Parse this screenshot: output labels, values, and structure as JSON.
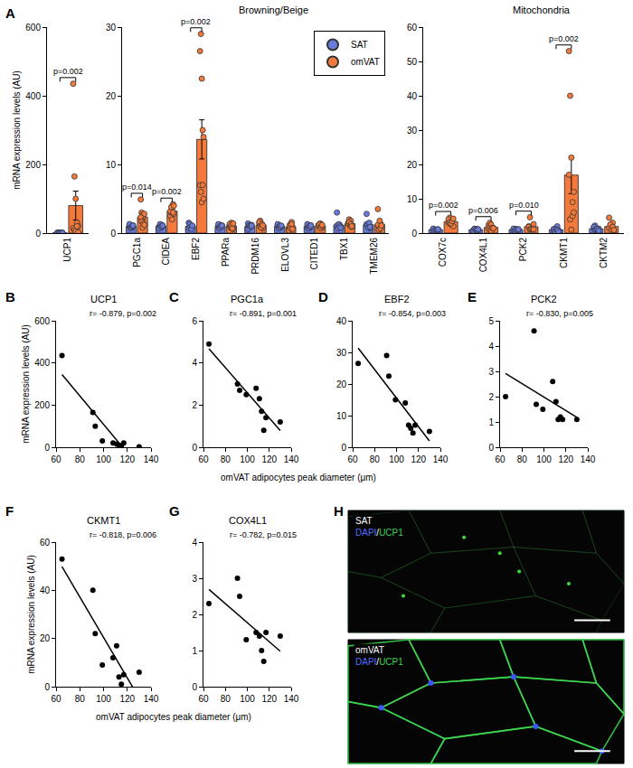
{
  "chart_data": [
    {
      "type": "bar",
      "panel": "A",
      "y_label": "mRNA expression levels (AU)",
      "categories": [
        "UCP1"
      ],
      "series": [
        {
          "name": "SAT",
          "color": "#6a7bdc",
          "values": [
            1.0
          ],
          "errors": [
            0.09
          ],
          "points": [
            [
              1.5,
              0.8,
              1.2,
              0.6,
              1.0,
              0.9,
              1.3,
              0.7,
              1.1,
              0.9
            ]
          ]
        },
        {
          "name": "omVAT",
          "color": "#f47a3c",
          "values": [
            80.2
          ],
          "errors": [
            42
          ],
          "points": [
            [
              435,
              165,
              100,
              30,
              20,
              15,
              10,
              5,
              20,
              2
            ]
          ]
        }
      ],
      "ylim": [
        0,
        600
      ],
      "yticks": [
        0,
        200,
        400,
        600
      ],
      "comparisons": [
        {
          "category": "UCP1",
          "text": "p=0.002"
        }
      ],
      "grid": false
    },
    {
      "type": "bar",
      "subtitle": "Browning/Beige",
      "categories": [
        "PGC1a",
        "CIDEA",
        "EBF2",
        "PPARa",
        "PRDM16",
        "ELOVL3",
        "CITED1",
        "TBX1",
        "TMEM26"
      ],
      "series": [
        {
          "name": "SAT",
          "color": "#6a7bdc",
          "values": [
            1.0,
            1.0,
            1.0,
            1.0,
            1.0,
            1.0,
            1.0,
            1.18,
            1.22
          ],
          "errors": [
            0.06,
            0.06,
            0.07,
            0.06,
            0.07,
            0.06,
            0.06,
            0.21,
            0.19
          ],
          "points": [
            [
              1.2,
              0.9,
              1.0,
              0.8,
              1.1,
              1.3,
              0.7,
              0.9,
              1.0,
              1.1
            ],
            [
              0.9,
              1.1,
              0.8,
              1.2,
              1.0,
              0.7,
              1.3,
              1.0,
              0.9,
              1.1
            ],
            [
              1.5,
              0.8,
              1.2,
              0.9,
              1.0,
              0.7,
              1.3,
              0.9,
              0.6,
              1.1
            ],
            [
              1.0,
              0.8,
              1.2,
              0.9,
              1.1,
              1.3,
              0.7,
              1.0,
              0.9,
              1.1
            ],
            [
              1.4,
              0.8,
              1.0,
              0.9,
              1.2,
              0.6,
              1.1,
              1.0,
              0.9,
              1.1
            ],
            [
              1.2,
              0.9,
              1.1,
              0.8,
              1.0,
              1.3,
              0.7,
              1.0,
              0.9,
              1.1
            ],
            [
              0.9,
              1.2,
              1.0,
              0.8,
              1.1,
              1.3,
              0.7,
              1.0,
              0.9,
              1.1
            ],
            [
              3.0,
              1.0,
              0.8,
              1.2,
              0.9,
              1.1,
              0.7,
              1.3,
              1.0,
              0.8
            ],
            [
              2.8,
              1.2,
              0.9,
              1.0,
              0.7,
              1.3,
              1.1,
              0.8,
              1.5,
              0.9
            ]
          ]
        },
        {
          "name": "omVAT",
          "color": "#f47a3c",
          "values": [
            2.33,
            3.2,
            13.65,
            1.05,
            1.19,
            0.91,
            1.06,
            1.38,
            1.27
          ],
          "errors": [
            0.38,
            0.22,
            2.85,
            0.09,
            0.11,
            0.12,
            0.07,
            0.11,
            0.28
          ],
          "points": [
            [
              4.9,
              3.0,
              2.7,
              2.5,
              2.8,
              2.3,
              1.7,
              0.8,
              1.4,
              1.2
            ],
            [
              2.5,
              3.0,
              3.5,
              4.2,
              2.8,
              3.2,
              3.8,
              2.0,
              3.0,
              4.0
            ],
            [
              26.5,
              29,
              22.5,
              15,
              14,
              7,
              6,
              4.5,
              7,
              5
            ],
            [
              1.2,
              0.8,
              1.5,
              1.0,
              0.6,
              1.3,
              0.9,
              1.1,
              0.7,
              1.4
            ],
            [
              1.5,
              1.8,
              0.9,
              1.2,
              0.7,
              1.6,
              1.0,
              0.8,
              1.3,
              1.1
            ],
            [
              0.5,
              1.2,
              0.8,
              1.6,
              0.9,
              0.4,
              1.1,
              0.7,
              1.3,
              0.6
            ],
            [
              1.2,
              0.9,
              1.4,
              1.0,
              0.8,
              1.1,
              1.3,
              0.7,
              1.0,
              1.2
            ],
            [
              1.5,
              2.0,
              1.2,
              1.8,
              0.9,
              1.4,
              1.6,
              1.1,
              1.3,
              1.0
            ],
            [
              3.5,
              1.0,
              0.6,
              1.4,
              0.9,
              1.2,
              0.5,
              1.8,
              0.7,
              1.1
            ]
          ]
        }
      ],
      "ylim": [
        0,
        30
      ],
      "yticks": [
        0,
        10,
        20,
        30
      ],
      "comparisons": [
        {
          "category": "PGC1a",
          "text": "p=0.014"
        },
        {
          "category": "CIDEA",
          "text": "p=0.002"
        },
        {
          "category": "EBF2",
          "text": "p=0.002"
        }
      ],
      "legend": "top right",
      "grid": false
    },
    {
      "type": "bar",
      "subtitle": "Mitochondria",
      "categories": [
        "COX7c",
        "COX4L1",
        "PCK2",
        "CKMT1",
        "CKTM2"
      ],
      "series": [
        {
          "name": "SAT",
          "color": "#6a7bdc",
          "values": [
            1.0,
            1.0,
            1.0,
            1.0,
            1.25
          ],
          "errors": [
            0.06,
            0.06,
            0.06,
            0.15,
            0.15
          ],
          "points": [
            [
              1.2,
              0.9,
              1.0,
              0.8,
              1.1,
              1.3,
              0.7,
              0.9,
              1.0,
              1.1
            ],
            [
              0.9,
              1.1,
              0.8,
              1.2,
              1.0,
              0.7,
              1.3,
              1.0,
              0.9,
              1.1
            ],
            [
              1.0,
              0.8,
              1.2,
              0.9,
              1.1,
              1.3,
              0.7,
              1.0,
              0.9,
              1.1
            ],
            [
              1.0,
              0.5,
              1.5,
              2.0,
              0.8,
              1.2,
              0.6,
              1.1,
              0.9,
              0.4
            ],
            [
              1.5,
              2.2,
              1.0,
              0.8,
              1.3,
              1.8,
              0.9,
              1.1,
              1.2,
              0.7
            ]
          ]
        },
        {
          "name": "omVAT",
          "color": "#f47a3c",
          "values": [
            3.35,
            1.66,
            1.87,
            16.9,
            1.92
          ],
          "errors": [
            0.25,
            0.22,
            0.33,
            5.4,
            0.37
          ],
          "points": [
            [
              3.0,
              4.5,
              2.5,
              3.8,
              2.0,
              4.0,
              3.2,
              2.8,
              3.5,
              4.2
            ],
            [
              2.3,
              3.0,
              2.5,
              1.3,
              1.5,
              1.4,
              1.0,
              0.7,
              1.5,
              1.4
            ],
            [
              2.0,
              4.6,
              1.7,
              1.5,
              2.6,
              1.8,
              1.1,
              1.2,
              1.1,
              1.1
            ],
            [
              53,
              40,
              22,
              9,
              12,
              17,
              4,
              1,
              5,
              6
            ],
            [
              4.5,
              2.0,
              1.2,
              3.0,
              0.8,
              1.5,
              2.5,
              1.0,
              1.8,
              0.9
            ]
          ]
        }
      ],
      "ylim": [
        0,
        60
      ],
      "yticks": [
        0,
        10,
        20,
        30,
        40,
        50,
        60
      ],
      "comparisons": [
        {
          "category": "COX7c",
          "text": "p=0.002"
        },
        {
          "category": "COX4L1",
          "text": "p=0.006"
        },
        {
          "category": "PCK2",
          "text": "p=0.010"
        },
        {
          "category": "CKMT1",
          "text": "p=0.002"
        }
      ],
      "grid": false
    },
    {
      "type": "scatter",
      "panel": "B",
      "title": "UCP1",
      "y_label": "mRNA expression levels (AU)",
      "annotation": "r= -0.879, p=0.002",
      "x": [
        65,
        91,
        93,
        99,
        108,
        111,
        113,
        115,
        117,
        130
      ],
      "values": [
        435,
        165,
        100,
        30,
        20,
        15,
        10,
        5,
        20,
        2
      ],
      "xlim": [
        60,
        140
      ],
      "xticks": [
        60,
        80,
        100,
        120,
        140
      ],
      "ylim": [
        0,
        600
      ],
      "yticks": [
        0,
        200,
        400,
        600
      ],
      "color": "#000000",
      "marker": "circle",
      "line_style": "solid",
      "grid": false
    },
    {
      "type": "scatter",
      "panel": "C",
      "title": "PGC1a",
      "x_label": "omVAT adipocytes peak diameter (μm)",
      "annotation": "r= -0.891, p=0.001",
      "x": [
        65,
        91,
        93,
        99,
        108,
        111,
        113,
        115,
        117,
        130
      ],
      "values": [
        4.9,
        3.0,
        2.7,
        2.5,
        2.8,
        2.3,
        1.7,
        0.8,
        1.4,
        1.2
      ],
      "xlim": [
        60,
        140
      ],
      "xticks": [
        60,
        80,
        100,
        120,
        140
      ],
      "ylim": [
        0,
        6
      ],
      "yticks": [
        0,
        2,
        4,
        6
      ],
      "color": "#000000",
      "marker": "circle",
      "line_style": "solid",
      "grid": false
    },
    {
      "type": "scatter",
      "panel": "D",
      "title": "EBF2",
      "annotation": "r= -0.854, p=0.003",
      "x": [
        65,
        91,
        93,
        99,
        108,
        111,
        113,
        115,
        117,
        130
      ],
      "values": [
        26.5,
        29,
        22.5,
        15,
        14,
        7,
        6,
        4.5,
        7,
        5
      ],
      "xlim": [
        60,
        140
      ],
      "xticks": [
        60,
        80,
        100,
        120,
        140
      ],
      "ylim": [
        0,
        40
      ],
      "yticks": [
        0,
        10,
        20,
        30,
        40
      ],
      "color": "#000000",
      "marker": "circle",
      "line_style": "solid",
      "grid": false
    },
    {
      "type": "scatter",
      "panel": "E",
      "title": "PCK2",
      "annotation": "r= -0.830, p=0.005",
      "x": [
        65,
        91,
        93,
        99,
        108,
        111,
        113,
        115,
        117,
        130
      ],
      "values": [
        2.0,
        4.6,
        1.7,
        1.5,
        2.6,
        1.8,
        1.1,
        1.2,
        1.1,
        1.1
      ],
      "xlim": [
        60,
        140
      ],
      "xticks": [
        60,
        80,
        100,
        120,
        140
      ],
      "ylim": [
        0,
        5
      ],
      "yticks": [
        0,
        1,
        2,
        3,
        4,
        5
      ],
      "color": "#000000",
      "marker": "circle",
      "line_style": "solid",
      "grid": false
    },
    {
      "type": "scatter",
      "panel": "F",
      "title": "CKMT1",
      "y_label": "mRNA expression levels (AU)",
      "x_label": "omVAT adipocytes peak diameter (μm)",
      "annotation": "r= -0.818, p=0.006",
      "x": [
        65,
        91,
        93,
        99,
        108,
        111,
        113,
        115,
        117,
        130
      ],
      "values": [
        53,
        40,
        22,
        9,
        12,
        17,
        4,
        1,
        5,
        6
      ],
      "xlim": [
        60,
        140
      ],
      "xticks": [
        60,
        80,
        100,
        120,
        140
      ],
      "ylim": [
        0,
        60
      ],
      "yticks": [
        0,
        20,
        40,
        60
      ],
      "color": "#000000",
      "marker": "circle",
      "line_style": "solid",
      "grid": false
    },
    {
      "type": "scatter",
      "panel": "G",
      "title": "COX4L1",
      "annotation": "r= -0.782, p=0.015",
      "x": [
        65,
        91,
        93,
        99,
        108,
        111,
        113,
        115,
        117,
        130
      ],
      "values": [
        2.3,
        3.0,
        2.5,
        1.3,
        1.5,
        1.4,
        1.0,
        0.7,
        1.5,
        1.4
      ],
      "xlim": [
        60,
        140
      ],
      "xticks": [
        60,
        80,
        100,
        120,
        140
      ],
      "ylim": [
        0,
        4
      ],
      "yticks": [
        0,
        1,
        2,
        3,
        4
      ],
      "color": "#000000",
      "marker": "circle",
      "line_style": "solid",
      "grid": false
    }
  ],
  "image_panel": {
    "panel": "H",
    "images": [
      {
        "label": "SAT",
        "stain": [
          {
            "text": "DAPI",
            "color": "#4d6bff"
          },
          {
            "text": "/",
            "color": "#ffffff"
          },
          {
            "text": "UCP1",
            "color": "#39d353"
          }
        ]
      },
      {
        "label": "omVAT",
        "stain": [
          {
            "text": "DAPI",
            "color": "#4d6bff"
          },
          {
            "text": "/",
            "color": "#ffffff"
          },
          {
            "text": "UCP1",
            "color": "#39d353"
          }
        ]
      }
    ]
  }
}
